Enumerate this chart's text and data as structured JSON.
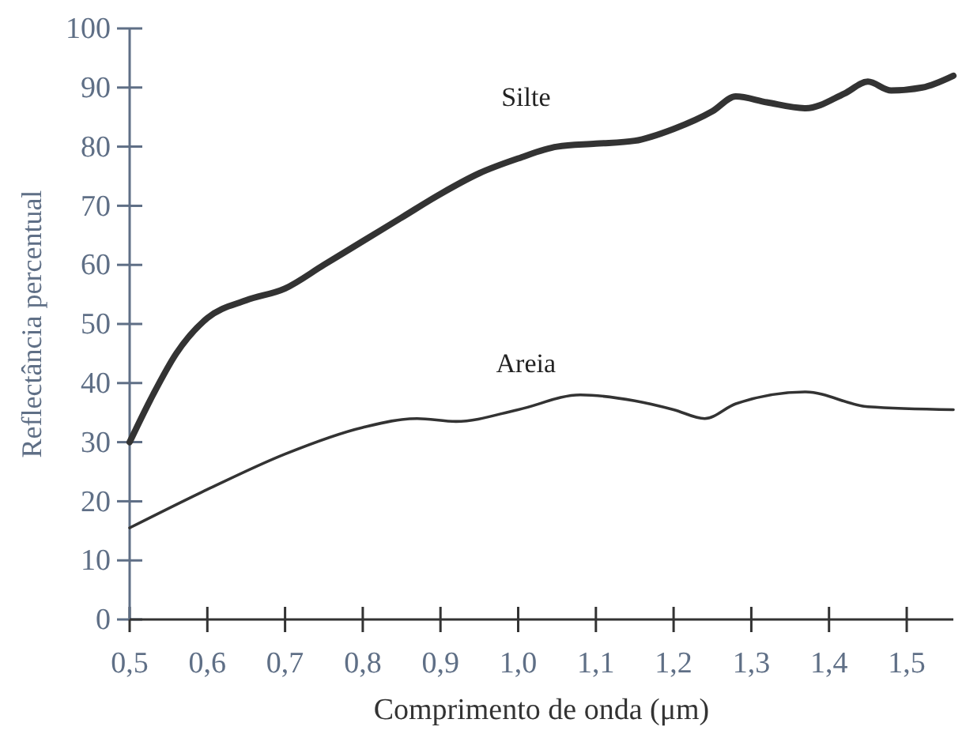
{
  "chart_data": {
    "type": "line",
    "xlabel": "Comprimento de onda (μm)",
    "ylabel": "Reflectância percentual",
    "xlim": [
      0.5,
      1.56
    ],
    "xticks": [
      {
        "value": 0.5,
        "label": "0,5"
      },
      {
        "value": 0.6,
        "label": "0,6"
      },
      {
        "value": 0.7,
        "label": "0,7"
      },
      {
        "value": 0.8,
        "label": "0,8"
      },
      {
        "value": 0.9,
        "label": "0,9"
      },
      {
        "value": 1.0,
        "label": "1,0"
      },
      {
        "value": 1.1,
        "label": "1,1"
      },
      {
        "value": 1.2,
        "label": "1,2"
      },
      {
        "value": 1.3,
        "label": "1,3"
      },
      {
        "value": 1.4,
        "label": "1,4"
      },
      {
        "value": 1.5,
        "label": "1,5"
      }
    ],
    "ylim": [
      0,
      100
    ],
    "yticks": [
      0,
      10,
      20,
      30,
      40,
      50,
      60,
      70,
      80,
      90,
      100
    ],
    "grid": false,
    "legend": false,
    "marker": "none",
    "line_style": "solid",
    "series": [
      {
        "name": "Silte",
        "color": "#333333",
        "x": [
          0.5,
          0.53,
          0.56,
          0.6,
          0.65,
          0.7,
          0.75,
          0.8,
          0.85,
          0.9,
          0.95,
          1.0,
          1.05,
          1.1,
          1.15,
          1.2,
          1.25,
          1.28,
          1.32,
          1.37,
          1.42,
          1.45,
          1.48,
          1.52,
          1.56
        ],
        "values": [
          30,
          38,
          45,
          51,
          54,
          56,
          60,
          64,
          68,
          72,
          75.5,
          78,
          80,
          80.5,
          81,
          83,
          86,
          88.5,
          87.5,
          86.5,
          89,
          91,
          89.5,
          90,
          92
        ]
      },
      {
        "name": "Areia",
        "color": "#333333",
        "x": [
          0.5,
          0.6,
          0.7,
          0.8,
          0.87,
          0.92,
          1.0,
          1.08,
          1.15,
          1.2,
          1.24,
          1.28,
          1.37,
          1.45,
          1.56
        ],
        "values": [
          15.5,
          22,
          28,
          32.5,
          34,
          33.5,
          35.5,
          38,
          37,
          35.5,
          34,
          36.5,
          38.5,
          36,
          35.5
        ]
      }
    ]
  }
}
